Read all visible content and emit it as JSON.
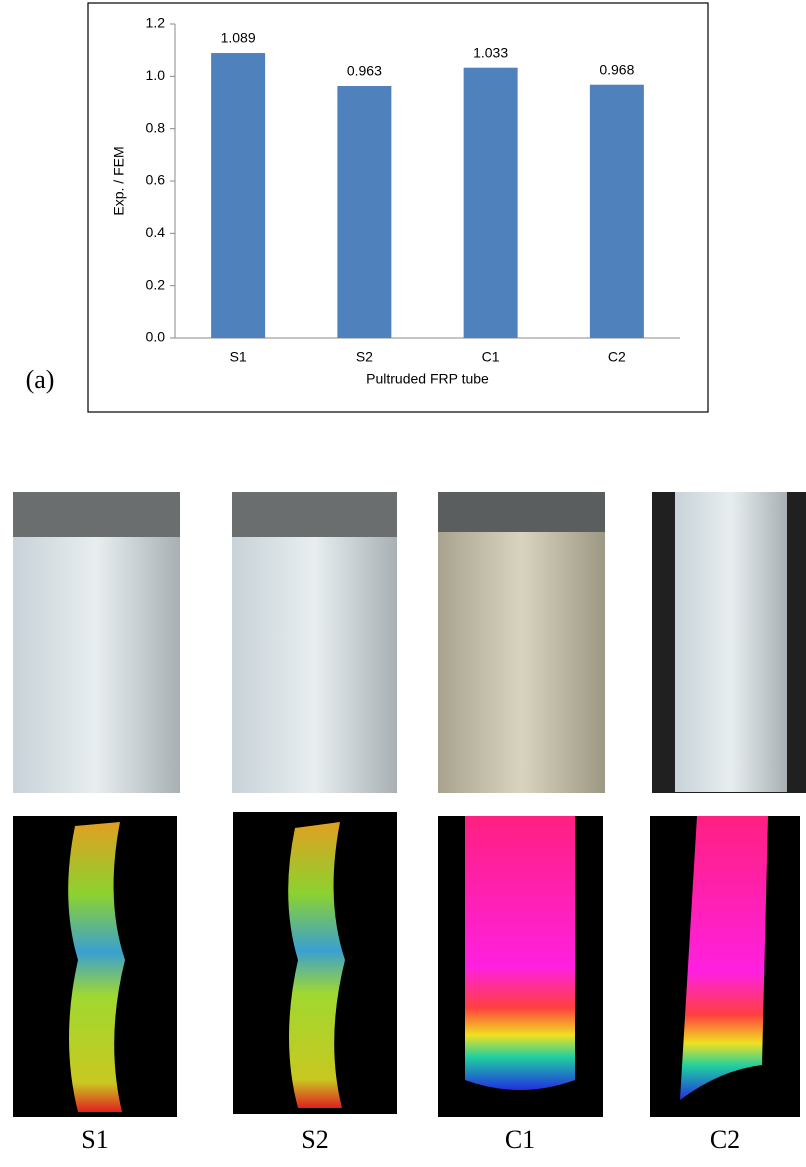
{
  "chart_data": {
    "type": "bar",
    "y_label": "Exp. / FEM",
    "x_label": "Pultruded FRP tube",
    "categories": [
      "S1",
      "S2",
      "C1",
      "C2"
    ],
    "values": [
      1.089,
      0.963,
      1.033,
      0.968
    ],
    "color": "#4f81bd",
    "ylim": [
      0,
      1.2
    ],
    "yticks": [
      {
        "value": 0,
        "label": "0.0"
      },
      0.2,
      0.4,
      0.6,
      0.8,
      {
        "value": 1,
        "label": "1.0"
      },
      1.2
    ]
  },
  "panel_label": "(a)",
  "photo_labels": [
    "S1",
    "S2",
    "C1",
    "C2"
  ]
}
